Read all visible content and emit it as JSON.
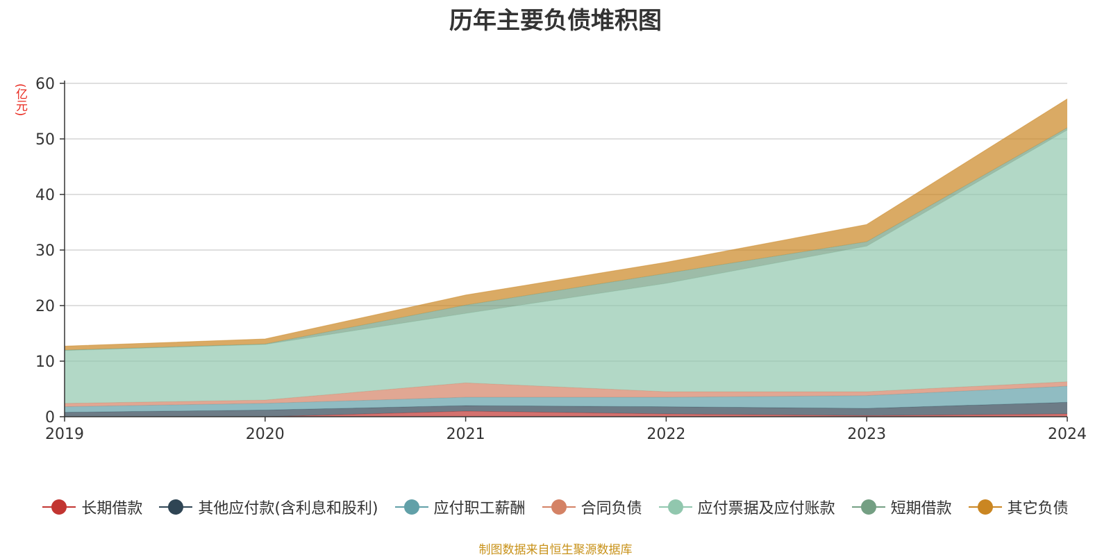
{
  "chart_data": {
    "type": "area",
    "stacked": true,
    "title": "历年主要负债堆积图",
    "unit_label": "(亿元)",
    "x": [
      "2019",
      "2020",
      "2021",
      "2022",
      "2023",
      "2024"
    ],
    "y_ticks": [
      "0",
      "10",
      "20",
      "30",
      "40",
      "50",
      "60"
    ],
    "ylim": [
      0,
      60
    ],
    "grid": true,
    "legend_position": "bottom",
    "series": [
      {
        "name": "长期借款",
        "color": "#c23531",
        "values": [
          0.0,
          0.0,
          1.0,
          0.5,
          0.2,
          0.5
        ]
      },
      {
        "name": "其他应付款(含利息和股利)",
        "color": "#2f4554",
        "values": [
          0.8,
          1.2,
          1.0,
          1.3,
          1.3,
          2.1
        ]
      },
      {
        "name": "应付职工薪酬",
        "color": "#61a0a8",
        "values": [
          1.0,
          1.2,
          1.5,
          1.7,
          2.3,
          2.9
        ]
      },
      {
        "name": "合同负债",
        "color": "#d48265",
        "values": [
          0.6,
          0.6,
          2.6,
          1.0,
          0.7,
          0.8
        ]
      },
      {
        "name": "应付票据及应付账款",
        "color": "#91c7ae",
        "values": [
          9.5,
          10.0,
          12.5,
          19.5,
          26.2,
          45.3
        ]
      },
      {
        "name": "短期借款",
        "color": "#749f83",
        "values": [
          0.1,
          0.1,
          1.5,
          1.8,
          0.8,
          0.4
        ]
      },
      {
        "name": "其它负债",
        "color": "#ca8622",
        "values": [
          0.7,
          0.9,
          1.8,
          2.0,
          3.1,
          5.2
        ]
      }
    ]
  },
  "source_note": "制图数据来自恒生聚源数据库"
}
